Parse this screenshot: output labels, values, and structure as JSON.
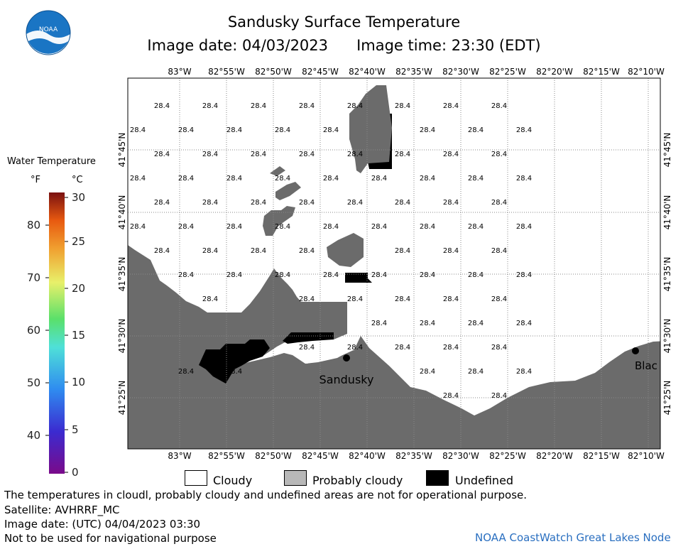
{
  "header": {
    "title": "Sandusky Surface Temperature",
    "image_date": "Image date: 04/03/2023",
    "image_time": "Image time: 23:30 (EDT)"
  },
  "logo": {
    "text": "NOAA",
    "icon": "noaa-logo-icon",
    "color": "#1a75c4"
  },
  "legend": {
    "title": "Water Temperature",
    "unit_f": "°F",
    "unit_c": "°C",
    "f_ticks": [
      "80",
      "70",
      "60",
      "50",
      "40"
    ],
    "c_ticks": [
      "30",
      "25",
      "20",
      "15",
      "10",
      "5",
      "0"
    ]
  },
  "map": {
    "lon_labels": [
      "83°W",
      "82°55'W",
      "82°50'W",
      "82°45'W",
      "82°40'W",
      "82°35'W",
      "82°30'W",
      "82°25'W",
      "82°20'W",
      "82°15'W",
      "82°10'W"
    ],
    "lat_labels": [
      "41°45'N",
      "41°40'N",
      "41°35'N",
      "41°30'N",
      "41°25'N"
    ],
    "temp_value": "28.4",
    "place_labels": {
      "sandusky": "Sandusky",
      "blac": "Blac"
    },
    "colors": {
      "land": "#6b6b6b",
      "probably_cloudy": "#6b6b6b",
      "undefined": "#000000",
      "water_28_4": "#ffffff"
    }
  },
  "key": {
    "cloudy": "Cloudy",
    "probably_cloudy": "Probably cloudy",
    "undefined": "Undefined"
  },
  "footer": {
    "line1": "The temperatures in cloudl, probably cloudy and undefined areas are not for operational purpose.",
    "line2": "Satellite: AVHRRF_MC",
    "line3": "Image date: (UTC) 04/04/2023  03:30",
    "line4": "Not to be used for navigational purpose",
    "credit": "NOAA CoastWatch Great Lakes Node"
  }
}
